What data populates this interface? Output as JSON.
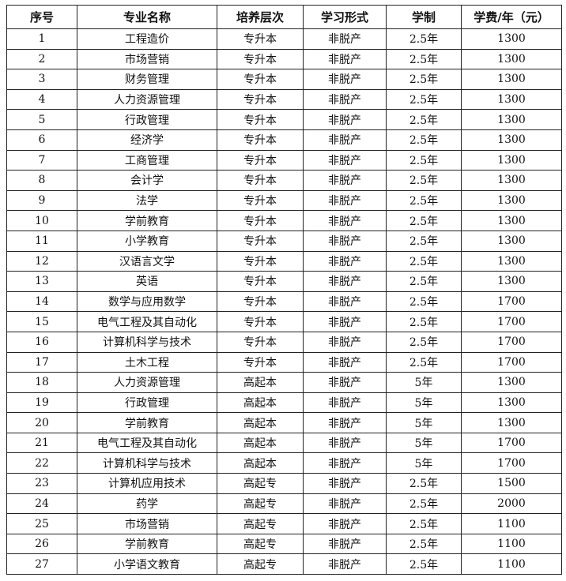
{
  "headers": [
    "序号",
    "专业名称",
    "培养层次",
    "学习形式",
    "学制",
    "学费/年（元）"
  ],
  "rows": [
    [
      "1",
      "工程造价",
      "专升本",
      "非脱产",
      "2.5年",
      "1300"
    ],
    [
      "2",
      "市场营销",
      "专升本",
      "非脱产",
      "2.5年",
      "1300"
    ],
    [
      "3",
      "财务管理",
      "专升本",
      "非脱产",
      "2.5年",
      "1300"
    ],
    [
      "4",
      "人力资源管理",
      "专升本",
      "非脱产",
      "2.5年",
      "1300"
    ],
    [
      "5",
      "行政管理",
      "专升本",
      "非脱产",
      "2.5年",
      "1300"
    ],
    [
      "6",
      "经济学",
      "专升本",
      "非脱产",
      "2.5年",
      "1300"
    ],
    [
      "7",
      "工商管理",
      "专升本",
      "非脱产",
      "2.5年",
      "1300"
    ],
    [
      "8",
      "会计学",
      "专升本",
      "非脱产",
      "2.5年",
      "1300"
    ],
    [
      "9",
      "法学",
      "专升本",
      "非脱产",
      "2.5年",
      "1300"
    ],
    [
      "10",
      "学前教育",
      "专升本",
      "非脱产",
      "2.5年",
      "1300"
    ],
    [
      "11",
      "小学教育",
      "专升本",
      "非脱产",
      "2.5年",
      "1300"
    ],
    [
      "12",
      "汉语言文学",
      "专升本",
      "非脱产",
      "2.5年",
      "1300"
    ],
    [
      "13",
      "英语",
      "专升本",
      "非脱产",
      "2.5年",
      "1300"
    ],
    [
      "14",
      "数学与应用数学",
      "专升本",
      "非脱产",
      "2.5年",
      "1700"
    ],
    [
      "15",
      "电气工程及其自动化",
      "专升本",
      "非脱产",
      "2.5年",
      "1700"
    ],
    [
      "16",
      "计算机科学与技术",
      "专升本",
      "非脱产",
      "2.5年",
      "1700"
    ],
    [
      "17",
      "土木工程",
      "专升本",
      "非脱产",
      "2.5年",
      "1700"
    ],
    [
      "18",
      "人力资源管理",
      "高起本",
      "非脱产",
      "5年",
      "1300"
    ],
    [
      "19",
      "行政管理",
      "高起本",
      "非脱产",
      "5年",
      "1300"
    ],
    [
      "20",
      "学前教育",
      "高起本",
      "非脱产",
      "5年",
      "1300"
    ],
    [
      "21",
      "电气工程及其自动化",
      "高起本",
      "非脱产",
      "5年",
      "1700"
    ],
    [
      "22",
      "计算机科学与技术",
      "高起本",
      "非脱产",
      "5年",
      "1700"
    ],
    [
      "23",
      "计算机应用技术",
      "高起专",
      "非脱产",
      "2.5年",
      "1500"
    ],
    [
      "24",
      "药学",
      "高起专",
      "非脱产",
      "2.5年",
      "2000"
    ],
    [
      "25",
      "市场营销",
      "高起专",
      "非脱产",
      "2.5年",
      "1100"
    ],
    [
      "26",
      "学前教育",
      "高起专",
      "非脱产",
      "2.5年",
      "1100"
    ],
    [
      "27",
      "小学语文教育",
      "高起专",
      "非脱产",
      "2.5年",
      "1100"
    ]
  ]
}
